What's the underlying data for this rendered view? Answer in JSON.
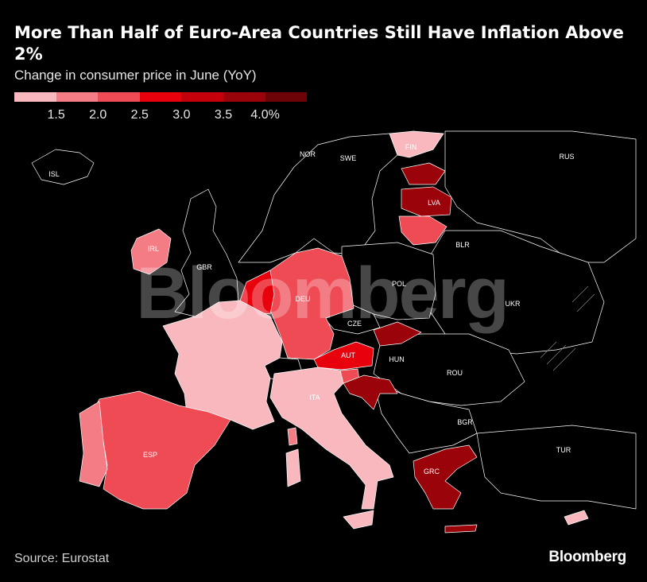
{
  "header": {
    "title": "More Than Half of Euro-Area Countries Still Have Inflation Above 2%",
    "subtitle": "Change in consumer price in June (YoY)"
  },
  "legend": {
    "colors": [
      "#f9b8bd",
      "#f47c85",
      "#ee4b55",
      "#e8000d",
      "#c4000b",
      "#9a0309",
      "#6d0207"
    ],
    "ticks": [
      "1.5",
      "2.0",
      "2.5",
      "3.0",
      "3.5",
      "4.0%"
    ]
  },
  "map": {
    "watermark": "Bloomberg",
    "country_labels": [
      "ISL",
      "NOR",
      "SWE",
      "FIN",
      "RUS",
      "LVA",
      "BLR",
      "IRL",
      "GBR",
      "DEU",
      "POL",
      "UKR",
      "CZE",
      "AUT",
      "HUN",
      "ROU",
      "ITA",
      "BGR",
      "ESP",
      "TUR",
      "GRC"
    ],
    "fills": {
      "non_euro": "#000000",
      "border": "#ffffff",
      "light": "#f9b8bd",
      "salmon": "#f47c85",
      "red": "#ee4b55",
      "bright": "#e8000d",
      "dark": "#9a0309"
    }
  },
  "footer": {
    "source": "Source: Eurostat",
    "brand": "Bloomberg"
  }
}
